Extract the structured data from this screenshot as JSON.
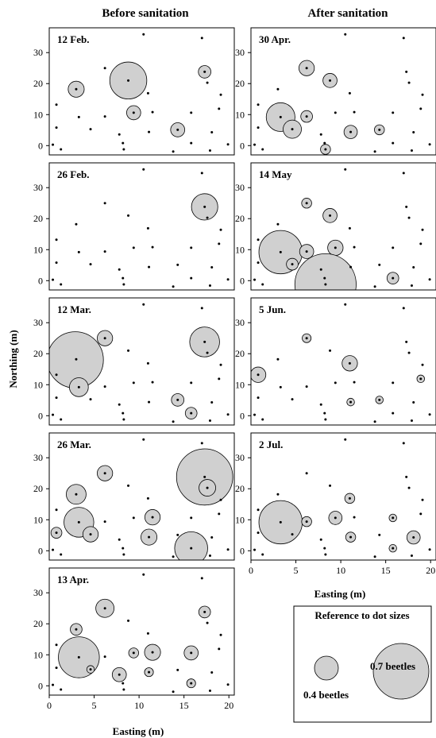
{
  "headers": {
    "left": "Before sanitation",
    "right": "After sanitation"
  },
  "axis": {
    "xlabel": "Easting (m)",
    "ylabel": "Northing (m)",
    "xticks": [
      0,
      5,
      10,
      15,
      20
    ],
    "yticks": [
      0,
      10,
      20,
      30
    ]
  },
  "legend": {
    "title": "Reference to dot sizes",
    "small_label": "0.4 beetles",
    "large_label": "0.7 beetles",
    "small_value": 0.4,
    "large_value": 0.7
  },
  "chart_data": {
    "type": "scatter",
    "subtype": "bubble",
    "xlabel": "Easting (m)",
    "ylabel": "Northing (m)",
    "xlim": [
      0,
      20
    ],
    "ylim": [
      -3,
      38
    ],
    "base_points": [
      [
        0.4,
        0.3
      ],
      [
        1.3,
        -1.2
      ],
      [
        0.8,
        5.8
      ],
      [
        0.8,
        13.2
      ],
      [
        3.0,
        18.2
      ],
      [
        3.3,
        9.2
      ],
      [
        4.6,
        5.3
      ],
      [
        6.2,
        9.4
      ],
      [
        6.2,
        25.0
      ],
      [
        7.8,
        3.6
      ],
      [
        8.2,
        0.8
      ],
      [
        8.3,
        -1.2
      ],
      [
        8.8,
        21.0
      ],
      [
        9.4,
        10.6
      ],
      [
        10.5,
        35.9
      ],
      [
        11.0,
        16.9
      ],
      [
        11.1,
        4.4
      ],
      [
        11.5,
        10.8
      ],
      [
        13.8,
        -1.9
      ],
      [
        14.3,
        5.1
      ],
      [
        15.8,
        10.6
      ],
      [
        15.8,
        0.8
      ],
      [
        17.0,
        34.7
      ],
      [
        17.3,
        23.8
      ],
      [
        17.6,
        20.3
      ],
      [
        17.9,
        -1.6
      ],
      [
        18.1,
        4.3
      ],
      [
        19.1,
        16.4
      ],
      [
        18.9,
        11.9
      ],
      [
        19.9,
        0.4
      ]
    ],
    "panels": [
      {
        "label": "12 Feb.",
        "column": "before",
        "bubbles": [
          {
            "x": 3.0,
            "y": 18.2,
            "beetles": 0.13
          },
          {
            "x": 8.8,
            "y": 21.0,
            "beetles": 0.69
          },
          {
            "x": 9.4,
            "y": 10.6,
            "beetles": 0.1
          },
          {
            "x": 14.3,
            "y": 5.1,
            "beetles": 0.1
          },
          {
            "x": 17.3,
            "y": 23.8,
            "beetles": 0.08
          }
        ]
      },
      {
        "label": "26 Feb.",
        "column": "before",
        "bubbles": [
          {
            "x": 17.3,
            "y": 23.8,
            "beetles": 0.35
          }
        ]
      },
      {
        "label": "12 Mar.",
        "column": "before",
        "bubbles": [
          {
            "x": 2.9,
            "y": 18.0,
            "beetles": 1.6
          },
          {
            "x": 3.3,
            "y": 9.2,
            "beetles": 0.18
          },
          {
            "x": 6.2,
            "y": 25.0,
            "beetles": 0.12
          },
          {
            "x": 14.3,
            "y": 5.1,
            "beetles": 0.08
          },
          {
            "x": 15.8,
            "y": 0.8,
            "beetles": 0.07
          },
          {
            "x": 17.3,
            "y": 23.8,
            "beetles": 0.45
          }
        ]
      },
      {
        "label": "26 Mar.",
        "column": "before",
        "bubbles": [
          {
            "x": 0.8,
            "y": 5.8,
            "beetles": 0.06
          },
          {
            "x": 3.0,
            "y": 18.2,
            "beetles": 0.2
          },
          {
            "x": 3.3,
            "y": 9.2,
            "beetles": 0.45
          },
          {
            "x": 4.6,
            "y": 5.3,
            "beetles": 0.12
          },
          {
            "x": 6.2,
            "y": 25.0,
            "beetles": 0.12
          },
          {
            "x": 11.1,
            "y": 4.4,
            "beetles": 0.13
          },
          {
            "x": 11.5,
            "y": 10.8,
            "beetles": 0.12
          },
          {
            "x": 15.8,
            "y": 0.8,
            "beetles": 0.55
          },
          {
            "x": 17.3,
            "y": 23.8,
            "beetles": 1.6
          },
          {
            "x": 17.6,
            "y": 20.3,
            "beetles": 0.14
          }
        ]
      },
      {
        "label": "13 Apr.",
        "column": "before",
        "bubbles": [
          {
            "x": 3.0,
            "y": 18.2,
            "beetles": 0.07
          },
          {
            "x": 3.3,
            "y": 9.2,
            "beetles": 0.85
          },
          {
            "x": 4.6,
            "y": 5.3,
            "beetles": 0.03
          },
          {
            "x": 6.2,
            "y": 25.0,
            "beetles": 0.17
          },
          {
            "x": 7.8,
            "y": 3.6,
            "beetles": 0.1
          },
          {
            "x": 9.4,
            "y": 10.6,
            "beetles": 0.05
          },
          {
            "x": 11.1,
            "y": 4.4,
            "beetles": 0.04
          },
          {
            "x": 11.5,
            "y": 10.8,
            "beetles": 0.13
          },
          {
            "x": 15.8,
            "y": 10.6,
            "beetles": 0.1
          },
          {
            "x": 15.8,
            "y": 0.8,
            "beetles": 0.04
          },
          {
            "x": 17.3,
            "y": 23.8,
            "beetles": 0.07
          }
        ]
      },
      {
        "label": "30 Apr.",
        "column": "after",
        "bubbles": [
          {
            "x": 3.3,
            "y": 9.2,
            "beetles": 0.42
          },
          {
            "x": 4.6,
            "y": 5.3,
            "beetles": 0.17
          },
          {
            "x": 6.2,
            "y": 25.0,
            "beetles": 0.12
          },
          {
            "x": 6.2,
            "y": 9.4,
            "beetles": 0.07
          },
          {
            "x": 8.8,
            "y": 21.0,
            "beetles": 0.1
          },
          {
            "x": 8.3,
            "y": -1.2,
            "beetles": 0.05
          },
          {
            "x": 11.1,
            "y": 4.4,
            "beetles": 0.09
          },
          {
            "x": 14.3,
            "y": 5.1,
            "beetles": 0.05
          }
        ]
      },
      {
        "label": "14 May",
        "column": "after",
        "bubbles": [
          {
            "x": 6.2,
            "y": 25.0,
            "beetles": 0.05
          },
          {
            "x": 8.8,
            "y": 21.0,
            "beetles": 0.1
          },
          {
            "x": 3.3,
            "y": 9.2,
            "beetles": 0.95
          },
          {
            "x": 4.6,
            "y": 5.3,
            "beetles": 0.07
          },
          {
            "x": 6.2,
            "y": 9.4,
            "beetles": 0.1
          },
          {
            "x": 9.4,
            "y": 10.6,
            "beetles": 0.12
          },
          {
            "x": 8.3,
            "y": -1.2,
            "beetles": 1.9
          },
          {
            "x": 15.8,
            "y": 0.8,
            "beetles": 0.07
          }
        ]
      },
      {
        "label": "5 Jun.",
        "column": "after",
        "bubbles": [
          {
            "x": 6.2,
            "y": 25.0,
            "beetles": 0.04
          },
          {
            "x": 0.8,
            "y": 13.2,
            "beetles": 0.12
          },
          {
            "x": 11.0,
            "y": 16.9,
            "beetles": 0.12
          },
          {
            "x": 11.1,
            "y": 4.4,
            "beetles": 0.03
          },
          {
            "x": 14.3,
            "y": 5.1,
            "beetles": 0.03
          },
          {
            "x": 18.9,
            "y": 11.9,
            "beetles": 0.03
          }
        ]
      },
      {
        "label": "2 Jul.",
        "column": "after",
        "bubbles": [
          {
            "x": 3.3,
            "y": 9.2,
            "beetles": 0.95
          },
          {
            "x": 6.2,
            "y": 9.4,
            "beetles": 0.05
          },
          {
            "x": 9.4,
            "y": 10.6,
            "beetles": 0.09
          },
          {
            "x": 11.0,
            "y": 16.9,
            "beetles": 0.05
          },
          {
            "x": 11.1,
            "y": 4.4,
            "beetles": 0.05
          },
          {
            "x": 15.8,
            "y": 10.6,
            "beetles": 0.03
          },
          {
            "x": 15.8,
            "y": 0.8,
            "beetles": 0.03
          },
          {
            "x": 18.1,
            "y": 4.3,
            "beetles": 0.09
          }
        ]
      }
    ]
  }
}
